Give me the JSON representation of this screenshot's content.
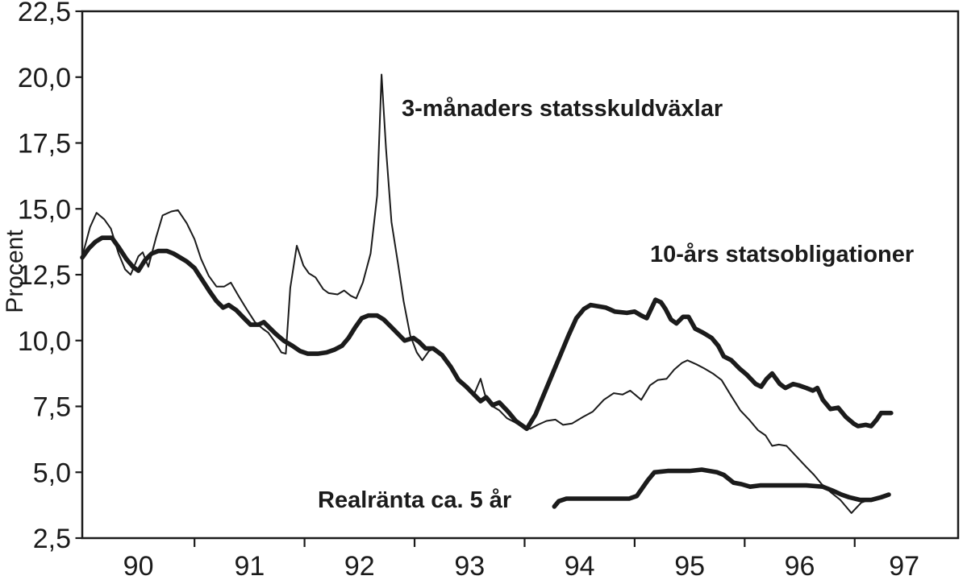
{
  "chart_data": {
    "type": "line",
    "title": "",
    "ylabel": "Procent",
    "xlabel": "",
    "grid": false,
    "legend_position": "inline-annotations",
    "x_range": [
      89.98,
      97.94
    ],
    "y_range": [
      2.5,
      22.5
    ],
    "y_ticks": [
      2.5,
      5.0,
      7.5,
      10.0,
      12.5,
      15.0,
      17.5,
      20.0,
      22.5
    ],
    "y_tick_labels": [
      "2,5",
      "5,0",
      "7,5",
      "10,0",
      "12,5",
      "15,0",
      "17,5",
      "20,0",
      "22,5"
    ],
    "x_ticks": [
      91,
      92,
      93,
      94,
      95,
      96,
      97
    ],
    "x_labels": [
      {
        "text": "90",
        "pos": 90.49
      },
      {
        "text": "91",
        "pos": 91.5
      },
      {
        "text": "92",
        "pos": 92.5
      },
      {
        "text": "93",
        "pos": 93.5
      },
      {
        "text": "94",
        "pos": 94.5
      },
      {
        "text": "95",
        "pos": 95.5
      },
      {
        "text": "96",
        "pos": 96.5
      },
      {
        "text": "97",
        "pos": 97.45
      }
    ],
    "line_color": "#1b1b1b",
    "series": [
      {
        "name": "3-månaders statsskuldväxlar",
        "style": "thin",
        "points": [
          [
            89.98,
            13.2
          ],
          [
            90.05,
            14.3
          ],
          [
            90.11,
            14.85
          ],
          [
            90.18,
            14.6
          ],
          [
            90.24,
            14.25
          ],
          [
            90.31,
            13.3
          ],
          [
            90.37,
            12.7
          ],
          [
            90.42,
            12.5
          ],
          [
            90.49,
            13.2
          ],
          [
            90.53,
            13.35
          ],
          [
            90.58,
            12.8
          ],
          [
            90.65,
            13.9
          ],
          [
            90.71,
            14.75
          ],
          [
            90.79,
            14.9
          ],
          [
            90.85,
            14.95
          ],
          [
            90.93,
            14.45
          ],
          [
            91.0,
            13.85
          ],
          [
            91.06,
            13.1
          ],
          [
            91.13,
            12.45
          ],
          [
            91.2,
            12.05
          ],
          [
            91.27,
            12.05
          ],
          [
            91.33,
            12.2
          ],
          [
            91.4,
            11.7
          ],
          [
            91.48,
            11.15
          ],
          [
            91.55,
            10.7
          ],
          [
            91.62,
            10.45
          ],
          [
            91.67,
            10.3
          ],
          [
            91.73,
            9.95
          ],
          [
            91.79,
            9.55
          ],
          [
            91.83,
            9.5
          ],
          [
            91.87,
            12.0
          ],
          [
            91.93,
            13.6
          ],
          [
            91.99,
            12.85
          ],
          [
            92.04,
            12.55
          ],
          [
            92.1,
            12.4
          ],
          [
            92.17,
            11.95
          ],
          [
            92.22,
            11.8
          ],
          [
            92.3,
            11.75
          ],
          [
            92.36,
            11.9
          ],
          [
            92.42,
            11.7
          ],
          [
            92.47,
            11.6
          ],
          [
            92.53,
            12.2
          ],
          [
            92.6,
            13.3
          ],
          [
            92.66,
            15.5
          ],
          [
            92.7,
            20.1
          ],
          [
            92.74,
            17.3
          ],
          [
            92.79,
            14.5
          ],
          [
            92.85,
            12.9
          ],
          [
            92.9,
            11.5
          ],
          [
            92.96,
            10.2
          ],
          [
            93.02,
            9.55
          ],
          [
            93.07,
            9.25
          ],
          [
            93.13,
            9.6
          ],
          [
            93.18,
            9.7
          ],
          [
            93.25,
            9.5
          ],
          [
            93.33,
            9.0
          ],
          [
            93.4,
            8.55
          ],
          [
            93.47,
            8.25
          ],
          [
            93.54,
            7.95
          ],
          [
            93.6,
            8.55
          ],
          [
            93.64,
            7.95
          ],
          [
            93.71,
            7.5
          ],
          [
            93.77,
            7.35
          ],
          [
            93.84,
            7.05
          ],
          [
            93.91,
            6.9
          ],
          [
            93.99,
            6.7
          ],
          [
            94.05,
            6.65
          ],
          [
            94.12,
            6.8
          ],
          [
            94.2,
            6.95
          ],
          [
            94.28,
            7.0
          ],
          [
            94.35,
            6.8
          ],
          [
            94.43,
            6.85
          ],
          [
            94.53,
            7.1
          ],
          [
            94.62,
            7.3
          ],
          [
            94.72,
            7.75
          ],
          [
            94.81,
            8.0
          ],
          [
            94.89,
            7.95
          ],
          [
            94.96,
            8.1
          ],
          [
            95.06,
            7.75
          ],
          [
            95.14,
            8.3
          ],
          [
            95.21,
            8.5
          ],
          [
            95.29,
            8.55
          ],
          [
            95.36,
            8.9
          ],
          [
            95.43,
            9.15
          ],
          [
            95.48,
            9.25
          ],
          [
            95.56,
            9.1
          ],
          [
            95.63,
            8.95
          ],
          [
            95.71,
            8.75
          ],
          [
            95.79,
            8.5
          ],
          [
            95.87,
            7.95
          ],
          [
            95.96,
            7.35
          ],
          [
            96.04,
            7.0
          ],
          [
            96.12,
            6.6
          ],
          [
            96.19,
            6.4
          ],
          [
            96.25,
            6.0
          ],
          [
            96.31,
            6.05
          ],
          [
            96.38,
            6.0
          ],
          [
            96.47,
            5.6
          ],
          [
            96.56,
            5.2
          ],
          [
            96.63,
            4.9
          ],
          [
            96.7,
            4.55
          ],
          [
            96.78,
            4.25
          ],
          [
            96.87,
            3.95
          ],
          [
            96.97,
            3.45
          ],
          [
            97.06,
            3.85
          ],
          [
            97.13,
            3.95
          ],
          [
            97.22,
            4.05
          ],
          [
            97.3,
            4.1
          ]
        ]
      },
      {
        "name": "10-års statsobligationer",
        "style": "thick",
        "points": [
          [
            89.98,
            13.15
          ],
          [
            90.04,
            13.5
          ],
          [
            90.1,
            13.75
          ],
          [
            90.16,
            13.9
          ],
          [
            90.25,
            13.9
          ],
          [
            90.31,
            13.55
          ],
          [
            90.38,
            13.1
          ],
          [
            90.44,
            12.8
          ],
          [
            90.49,
            12.65
          ],
          [
            90.55,
            13.05
          ],
          [
            90.61,
            13.3
          ],
          [
            90.67,
            13.4
          ],
          [
            90.75,
            13.4
          ],
          [
            90.81,
            13.3
          ],
          [
            90.87,
            13.15
          ],
          [
            90.93,
            13.0
          ],
          [
            91.0,
            12.75
          ],
          [
            91.07,
            12.3
          ],
          [
            91.14,
            11.85
          ],
          [
            91.2,
            11.5
          ],
          [
            91.26,
            11.25
          ],
          [
            91.31,
            11.35
          ],
          [
            91.38,
            11.15
          ],
          [
            91.45,
            10.85
          ],
          [
            91.51,
            10.6
          ],
          [
            91.58,
            10.6
          ],
          [
            91.63,
            10.7
          ],
          [
            91.69,
            10.45
          ],
          [
            91.74,
            10.25
          ],
          [
            91.81,
            10.0
          ],
          [
            91.89,
            9.8
          ],
          [
            91.96,
            9.6
          ],
          [
            92.03,
            9.5
          ],
          [
            92.12,
            9.5
          ],
          [
            92.2,
            9.55
          ],
          [
            92.27,
            9.65
          ],
          [
            92.34,
            9.8
          ],
          [
            92.4,
            10.1
          ],
          [
            92.46,
            10.5
          ],
          [
            92.52,
            10.85
          ],
          [
            92.58,
            10.95
          ],
          [
            92.66,
            10.95
          ],
          [
            92.72,
            10.8
          ],
          [
            92.78,
            10.55
          ],
          [
            92.85,
            10.25
          ],
          [
            92.91,
            10.0
          ],
          [
            92.99,
            10.1
          ],
          [
            93.04,
            9.95
          ],
          [
            93.1,
            9.7
          ],
          [
            93.17,
            9.7
          ],
          [
            93.25,
            9.45
          ],
          [
            93.33,
            9.0
          ],
          [
            93.4,
            8.5
          ],
          [
            93.47,
            8.25
          ],
          [
            93.54,
            7.95
          ],
          [
            93.6,
            7.7
          ],
          [
            93.65,
            7.85
          ],
          [
            93.71,
            7.55
          ],
          [
            93.77,
            7.65
          ],
          [
            93.85,
            7.3
          ],
          [
            93.92,
            6.95
          ],
          [
            94.02,
            6.65
          ],
          [
            94.1,
            7.2
          ],
          [
            94.18,
            8.0
          ],
          [
            94.26,
            8.8
          ],
          [
            94.33,
            9.5
          ],
          [
            94.4,
            10.2
          ],
          [
            94.47,
            10.85
          ],
          [
            94.54,
            11.2
          ],
          [
            94.6,
            11.35
          ],
          [
            94.67,
            11.3
          ],
          [
            94.74,
            11.25
          ],
          [
            94.82,
            11.1
          ],
          [
            94.93,
            11.05
          ],
          [
            95.0,
            11.1
          ],
          [
            95.06,
            10.95
          ],
          [
            95.11,
            10.85
          ],
          [
            95.19,
            11.55
          ],
          [
            95.24,
            11.45
          ],
          [
            95.28,
            11.2
          ],
          [
            95.33,
            10.8
          ],
          [
            95.38,
            10.65
          ],
          [
            95.44,
            10.9
          ],
          [
            95.49,
            10.9
          ],
          [
            95.55,
            10.45
          ],
          [
            95.62,
            10.3
          ],
          [
            95.7,
            10.1
          ],
          [
            95.76,
            9.8
          ],
          [
            95.81,
            9.4
          ],
          [
            95.88,
            9.25
          ],
          [
            95.95,
            8.95
          ],
          [
            96.02,
            8.7
          ],
          [
            96.1,
            8.35
          ],
          [
            96.15,
            8.25
          ],
          [
            96.2,
            8.55
          ],
          [
            96.25,
            8.75
          ],
          [
            96.32,
            8.35
          ],
          [
            96.37,
            8.2
          ],
          [
            96.44,
            8.35
          ],
          [
            96.49,
            8.3
          ],
          [
            96.56,
            8.2
          ],
          [
            96.62,
            8.1
          ],
          [
            96.66,
            8.2
          ],
          [
            96.71,
            7.75
          ],
          [
            96.78,
            7.4
          ],
          [
            96.85,
            7.45
          ],
          [
            96.92,
            7.1
          ],
          [
            96.99,
            6.85
          ],
          [
            97.03,
            6.75
          ],
          [
            97.1,
            6.8
          ],
          [
            97.15,
            6.75
          ],
          [
            97.2,
            7.0
          ],
          [
            97.24,
            7.25
          ],
          [
            97.33,
            7.25
          ]
        ]
      },
      {
        "name": "Realränta ca. 5 år",
        "style": "thick",
        "points": [
          [
            94.27,
            3.7
          ],
          [
            94.31,
            3.9
          ],
          [
            94.38,
            4.0
          ],
          [
            94.6,
            4.0
          ],
          [
            94.95,
            4.0
          ],
          [
            95.02,
            4.1
          ],
          [
            95.12,
            4.7
          ],
          [
            95.18,
            5.0
          ],
          [
            95.3,
            5.05
          ],
          [
            95.5,
            5.05
          ],
          [
            95.61,
            5.1
          ],
          [
            95.75,
            5.0
          ],
          [
            95.81,
            4.9
          ],
          [
            95.9,
            4.6
          ],
          [
            95.97,
            4.55
          ],
          [
            96.05,
            4.45
          ],
          [
            96.14,
            4.5
          ],
          [
            96.3,
            4.5
          ],
          [
            96.49,
            4.5
          ],
          [
            96.56,
            4.5
          ],
          [
            96.71,
            4.45
          ],
          [
            96.8,
            4.3
          ],
          [
            96.88,
            4.15
          ],
          [
            96.95,
            4.05
          ],
          [
            97.05,
            3.95
          ],
          [
            97.15,
            3.95
          ],
          [
            97.24,
            4.05
          ],
          [
            97.31,
            4.15
          ]
        ]
      }
    ]
  }
}
